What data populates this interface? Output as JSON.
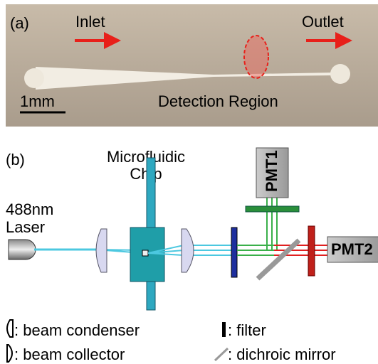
{
  "panel_a": {
    "label": "(a)",
    "inlet": "Inlet",
    "outlet": "Outlet",
    "scale_bar": "1mm",
    "region": "Detection Region"
  },
  "panel_b": {
    "label": "(b)",
    "chip": [
      "Microfluidic",
      "Chip"
    ],
    "laser": [
      "488nm",
      "Laser"
    ],
    "pmt1": "PMT1",
    "pmt2": "PMT2"
  },
  "legend": {
    "condenser": ": beam condenser",
    "filter": ": filter",
    "collector": ": beam collector",
    "mirror": ": dichroic mirror"
  }
}
